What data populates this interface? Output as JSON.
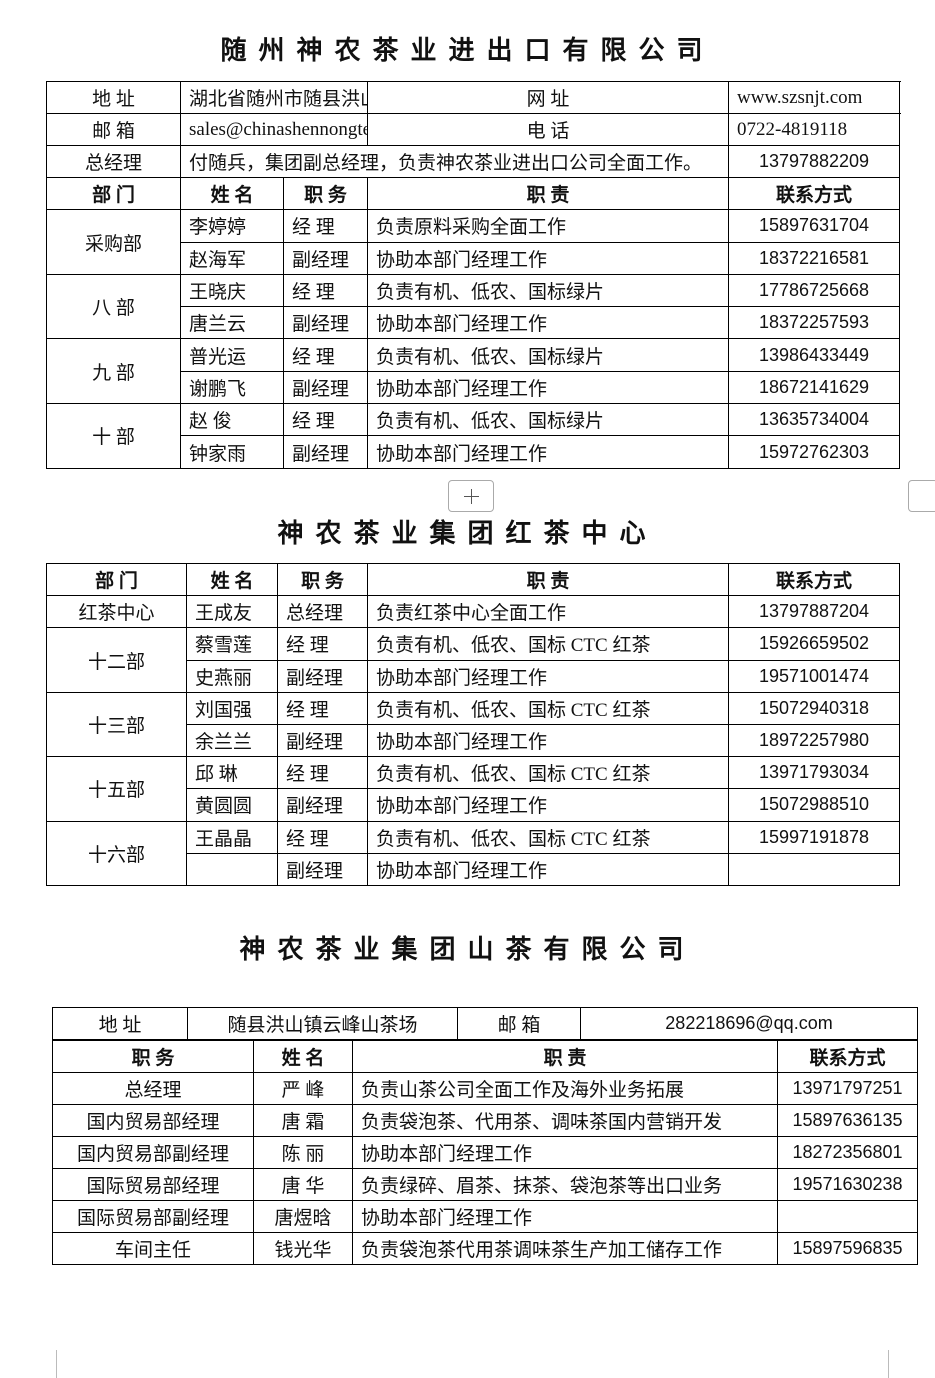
{
  "s1": {
    "title": "随州神农茶业进出口有限公司",
    "info": [
      [
        "地 址",
        "湖北省随州市随县洪山镇云峰山",
        "网 址",
        "www.szsnjt.com"
      ],
      [
        "邮 箱",
        "sales@chinashennongtea.com",
        "电 话",
        "0722-4819118"
      ]
    ],
    "gm": [
      "总经理",
      "付随兵，集团副总经理，负责神农茶业进出口公司全面工作。",
      "13797882209"
    ],
    "header": [
      "部 门",
      "姓 名",
      "职 务",
      "职 责",
      "联系方式"
    ],
    "groups": [
      {
        "dept": "采购部",
        "rows": [
          [
            "李婷婷",
            "经 理",
            "负责原料采购全面工作",
            "15897631704"
          ],
          [
            "赵海军",
            "副经理",
            "协助本部门经理工作",
            "18372216581"
          ]
        ]
      },
      {
        "dept": "八 部",
        "rows": [
          [
            "王晓庆",
            "经 理",
            "负责有机、低农、国标绿片",
            "17786725668"
          ],
          [
            "唐兰云",
            "副经理",
            "协助本部门经理工作",
            "18372257593"
          ]
        ]
      },
      {
        "dept": "九 部",
        "rows": [
          [
            "普光运",
            "经 理",
            "负责有机、低农、国标绿片",
            "13986433449"
          ],
          [
            "谢鹏飞",
            "副经理",
            "协助本部门经理工作",
            "18672141629"
          ]
        ]
      },
      {
        "dept": "十 部",
        "rows": [
          [
            "赵 俊",
            "经 理",
            "负责有机、低农、国标绿片",
            "13635734004"
          ],
          [
            "钟家雨",
            "副经理",
            "协助本部门经理工作",
            "15972762303"
          ]
        ]
      }
    ]
  },
  "s2": {
    "title": "神农茶业集团红茶中心",
    "header": [
      "部 门",
      "姓 名",
      "职 务",
      "职 责",
      "联系方式"
    ],
    "groups": [
      {
        "dept": "红茶中心",
        "rows": [
          [
            "王成友",
            "总经理",
            "负责红茶中心全面工作",
            "13797887204"
          ]
        ]
      },
      {
        "dept": "十二部",
        "rows": [
          [
            "蔡雪莲",
            "经 理",
            "负责有机、低农、国标 CTC 红茶",
            "15926659502"
          ],
          [
            "史燕丽",
            "副经理",
            "协助本部门经理工作",
            "19571001474"
          ]
        ]
      },
      {
        "dept": "十三部",
        "rows": [
          [
            "刘国强",
            "经 理",
            "负责有机、低农、国标 CTC 红茶",
            "15072940318"
          ],
          [
            "余兰兰",
            "副经理",
            "协助本部门经理工作",
            "18972257980"
          ]
        ]
      },
      {
        "dept": "十五部",
        "rows": [
          [
            "邱 琳",
            "经 理",
            "负责有机、低农、国标 CTC 红茶",
            "13971793034"
          ],
          [
            "黄圆圆",
            "副经理",
            "协助本部门经理工作",
            "15072988510"
          ]
        ]
      },
      {
        "dept": "十六部",
        "rows": [
          [
            "王晶晶",
            "经 理",
            "负责有机、低农、国标 CTC 红茶",
            "15997191878"
          ],
          [
            null,
            "副经理",
            "协助本部门经理工作",
            null
          ]
        ]
      }
    ]
  },
  "s3": {
    "title": "神农茶业集团山茶有限公司",
    "info": [
      "地 址",
      "随县洪山镇云峰山茶场",
      "邮 箱",
      "282218696@qq.com"
    ],
    "header": [
      "职 务",
      "姓 名",
      "职 责",
      "联系方式"
    ],
    "rows": [
      [
        "总经理",
        "严 峰",
        "负责山茶公司全面工作及海外业务拓展",
        "13971797251"
      ],
      [
        "国内贸易部经理",
        "唐 霜",
        "负责袋泡茶、代用茶、调味茶国内营销开发",
        "15897636135"
      ],
      [
        "国内贸易部副经理",
        "陈 丽",
        "协助本部门经理工作",
        "18272356801"
      ],
      [
        "国际贸易部经理",
        "唐 华",
        "负责绿碎、眉茶、抹茶、袋泡茶等出口业务",
        "19571630238"
      ],
      [
        "国际贸易部副经理",
        "唐煜晗",
        "协助本部门经理工作",
        null
      ],
      [
        "车间主任",
        "钱光华",
        "负责袋泡茶代用茶调味茶生产加工储存工作",
        "15897596835"
      ]
    ]
  }
}
